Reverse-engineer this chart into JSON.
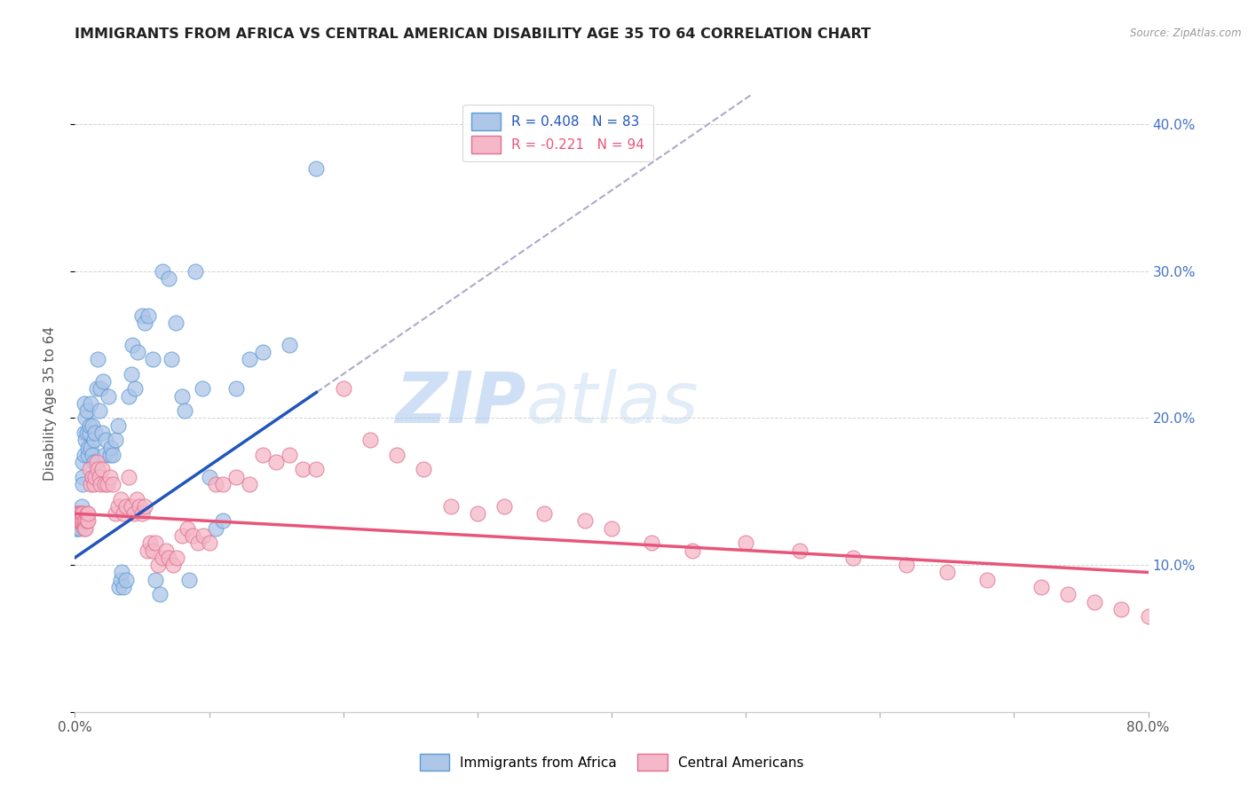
{
  "title": "IMMIGRANTS FROM AFRICA VS CENTRAL AMERICAN DISABILITY AGE 35 TO 64 CORRELATION CHART",
  "source": "Source: ZipAtlas.com",
  "ylabel": "Disability Age 35 to 64",
  "xlim": [
    0.0,
    0.8
  ],
  "ylim": [
    0.0,
    0.42
  ],
  "xticks": [
    0.0,
    0.1,
    0.2,
    0.3,
    0.4,
    0.5,
    0.6,
    0.7,
    0.8
  ],
  "xticklabels": [
    "0.0%",
    "",
    "",
    "",
    "",
    "",
    "",
    "",
    "80.0%"
  ],
  "yticks": [
    0.0,
    0.1,
    0.2,
    0.3,
    0.4
  ],
  "yticklabels": [
    "",
    "10.0%",
    "20.0%",
    "30.0%",
    "40.0%"
  ],
  "africa_color": "#aec6e8",
  "africa_edge": "#5b9bd5",
  "central_color": "#f4b8c8",
  "central_edge": "#e07090",
  "africa_line_color": "#2255bb",
  "central_line_color": "#e8557a",
  "extend_line_color": "#aaaacc",
  "watermark": "ZIPatlas",
  "legend_africa_label": "R = 0.408   N = 83",
  "legend_central_label": "R = -0.221   N = 94",
  "africa_x": [
    0.001,
    0.001,
    0.002,
    0.002,
    0.002,
    0.003,
    0.003,
    0.003,
    0.003,
    0.004,
    0.004,
    0.004,
    0.005,
    0.005,
    0.005,
    0.006,
    0.006,
    0.006,
    0.007,
    0.007,
    0.007,
    0.008,
    0.008,
    0.009,
    0.009,
    0.01,
    0.01,
    0.011,
    0.011,
    0.012,
    0.012,
    0.013,
    0.013,
    0.014,
    0.014,
    0.015,
    0.016,
    0.017,
    0.018,
    0.019,
    0.02,
    0.021,
    0.022,
    0.023,
    0.025,
    0.026,
    0.027,
    0.028,
    0.03,
    0.032,
    0.033,
    0.034,
    0.035,
    0.036,
    0.038,
    0.04,
    0.042,
    0.043,
    0.045,
    0.047,
    0.05,
    0.052,
    0.055,
    0.058,
    0.06,
    0.063,
    0.065,
    0.07,
    0.072,
    0.075,
    0.08,
    0.082,
    0.085,
    0.09,
    0.095,
    0.1,
    0.105,
    0.11,
    0.12,
    0.13,
    0.14,
    0.16,
    0.18
  ],
  "africa_y": [
    0.125,
    0.13,
    0.13,
    0.125,
    0.128,
    0.13,
    0.135,
    0.128,
    0.13,
    0.135,
    0.13,
    0.125,
    0.135,
    0.14,
    0.13,
    0.16,
    0.155,
    0.17,
    0.19,
    0.175,
    0.21,
    0.185,
    0.2,
    0.19,
    0.205,
    0.175,
    0.18,
    0.19,
    0.195,
    0.18,
    0.21,
    0.175,
    0.195,
    0.17,
    0.185,
    0.19,
    0.22,
    0.24,
    0.205,
    0.22,
    0.19,
    0.225,
    0.175,
    0.185,
    0.215,
    0.175,
    0.18,
    0.175,
    0.185,
    0.195,
    0.085,
    0.09,
    0.095,
    0.085,
    0.09,
    0.215,
    0.23,
    0.25,
    0.22,
    0.245,
    0.27,
    0.265,
    0.27,
    0.24,
    0.09,
    0.08,
    0.3,
    0.295,
    0.24,
    0.265,
    0.215,
    0.205,
    0.09,
    0.3,
    0.22,
    0.16,
    0.125,
    0.13,
    0.22,
    0.24,
    0.245,
    0.25,
    0.37
  ],
  "central_x": [
    0.001,
    0.001,
    0.002,
    0.002,
    0.003,
    0.003,
    0.004,
    0.004,
    0.005,
    0.005,
    0.006,
    0.006,
    0.007,
    0.007,
    0.008,
    0.008,
    0.009,
    0.009,
    0.01,
    0.01,
    0.011,
    0.012,
    0.013,
    0.014,
    0.015,
    0.016,
    0.017,
    0.018,
    0.019,
    0.02,
    0.022,
    0.024,
    0.026,
    0.028,
    0.03,
    0.032,
    0.034,
    0.036,
    0.038,
    0.04,
    0.042,
    0.044,
    0.046,
    0.048,
    0.05,
    0.052,
    0.054,
    0.056,
    0.058,
    0.06,
    0.062,
    0.065,
    0.068,
    0.07,
    0.073,
    0.076,
    0.08,
    0.084,
    0.088,
    0.092,
    0.096,
    0.1,
    0.105,
    0.11,
    0.12,
    0.13,
    0.14,
    0.15,
    0.16,
    0.17,
    0.18,
    0.2,
    0.22,
    0.24,
    0.26,
    0.28,
    0.3,
    0.32,
    0.35,
    0.38,
    0.4,
    0.43,
    0.46,
    0.5,
    0.54,
    0.58,
    0.62,
    0.65,
    0.68,
    0.72,
    0.74,
    0.76,
    0.78,
    0.8
  ],
  "central_y": [
    0.135,
    0.13,
    0.135,
    0.13,
    0.135,
    0.13,
    0.135,
    0.13,
    0.13,
    0.135,
    0.13,
    0.135,
    0.13,
    0.125,
    0.13,
    0.125,
    0.135,
    0.13,
    0.13,
    0.135,
    0.165,
    0.155,
    0.16,
    0.155,
    0.16,
    0.17,
    0.165,
    0.16,
    0.155,
    0.165,
    0.155,
    0.155,
    0.16,
    0.155,
    0.135,
    0.14,
    0.145,
    0.135,
    0.14,
    0.16,
    0.14,
    0.135,
    0.145,
    0.14,
    0.135,
    0.14,
    0.11,
    0.115,
    0.11,
    0.115,
    0.1,
    0.105,
    0.11,
    0.105,
    0.1,
    0.105,
    0.12,
    0.125,
    0.12,
    0.115,
    0.12,
    0.115,
    0.155,
    0.155,
    0.16,
    0.155,
    0.175,
    0.17,
    0.175,
    0.165,
    0.165,
    0.22,
    0.185,
    0.175,
    0.165,
    0.14,
    0.135,
    0.14,
    0.135,
    0.13,
    0.125,
    0.115,
    0.11,
    0.115,
    0.11,
    0.105,
    0.1,
    0.095,
    0.09,
    0.085,
    0.08,
    0.075,
    0.07,
    0.065
  ]
}
